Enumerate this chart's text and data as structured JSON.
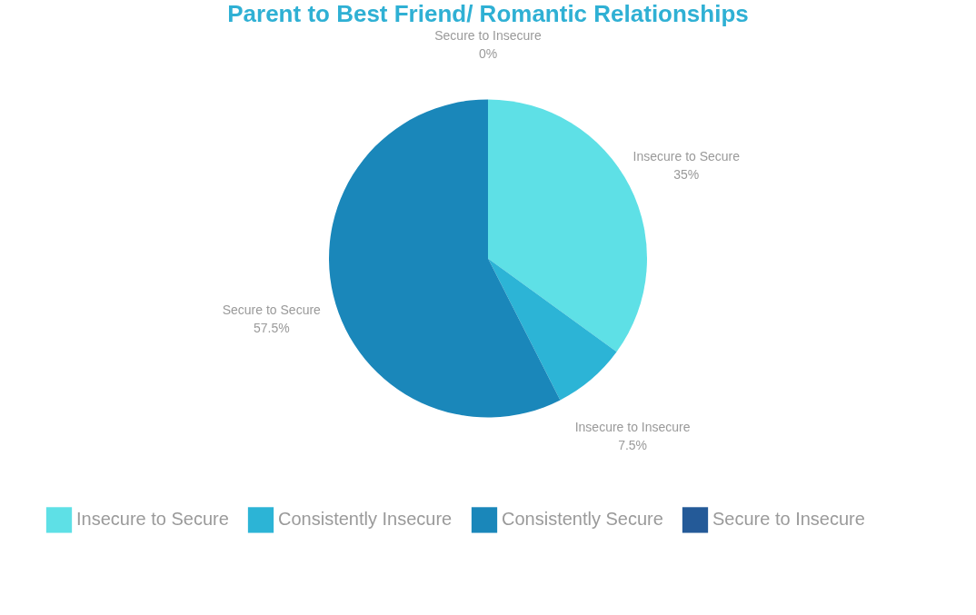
{
  "chart_data": {
    "type": "pie",
    "title": "Parent to Best Friend/ Romantic Relationships",
    "categories": [
      "Insecure to Secure",
      "Consistently Insecure",
      "Consistently Secure",
      "Secure to Insecure"
    ],
    "values": [
      35,
      7.5,
      57.5,
      0
    ],
    "colors": [
      "#5ee0e6",
      "#2cb4d6",
      "#1a87ba",
      "#245a98"
    ],
    "value_labels": [
      "Insecure to Secure\n35%",
      "Insecure to Insecure\n7.5%",
      "Secure to Secure\n57.5%",
      "Secure to Insecure\n0%"
    ],
    "legend": "bottom"
  }
}
